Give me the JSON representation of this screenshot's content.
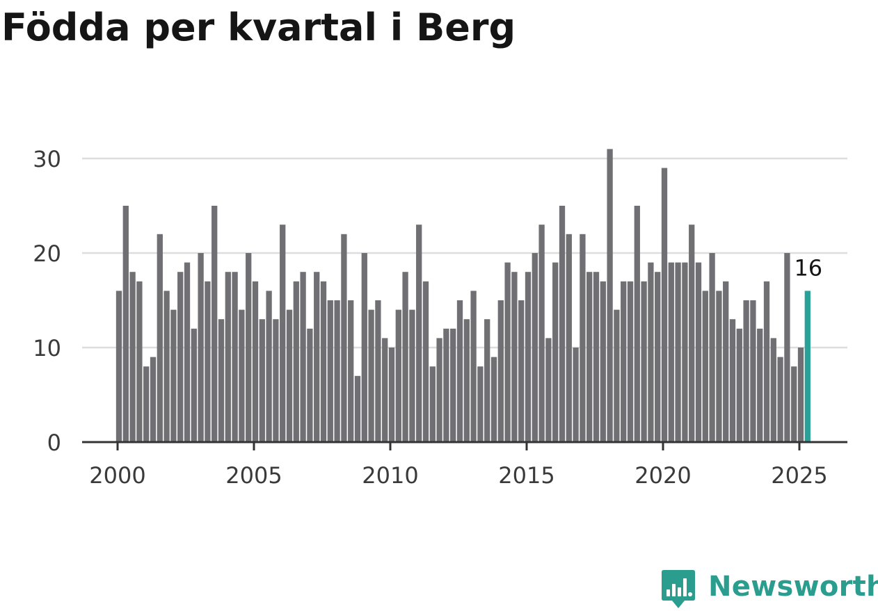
{
  "chart_data": {
    "type": "bar",
    "title": "Födda per kvartal i Berg",
    "xlabel": "",
    "ylabel": "",
    "x_start_year": 2000,
    "periods_per_year": 4,
    "ylim": [
      0,
      31
    ],
    "yticks": [
      0,
      10,
      20,
      30
    ],
    "xtick_labels": [
      "2000",
      "2005",
      "2010",
      "2015",
      "2020",
      "2025"
    ],
    "grid": true,
    "values": [
      16,
      25,
      18,
      17,
      8,
      9,
      22,
      16,
      14,
      18,
      19,
      12,
      20,
      17,
      25,
      13,
      18,
      18,
      14,
      20,
      17,
      13,
      16,
      13,
      23,
      14,
      17,
      18,
      12,
      18,
      17,
      15,
      15,
      22,
      15,
      7,
      20,
      14,
      15,
      11,
      10,
      14,
      18,
      14,
      23,
      17,
      8,
      11,
      12,
      12,
      15,
      13,
      16,
      8,
      13,
      9,
      15,
      19,
      18,
      15,
      18,
      20,
      23,
      11,
      19,
      25,
      22,
      10,
      22,
      18,
      18,
      17,
      31,
      14,
      17,
      17,
      25,
      17,
      19,
      18,
      29,
      19,
      19,
      19,
      23,
      19,
      16,
      20,
      16,
      17,
      13,
      12,
      15,
      15,
      12,
      17,
      11,
      9,
      20,
      8,
      10,
      16
    ],
    "highlight_last": true,
    "highlight_label": "16",
    "colors": {
      "bar": "#707074",
      "highlight": "#2aa198",
      "grid": "#dddddd",
      "axis": "#333333"
    }
  },
  "brand": {
    "name": "Newsworthy",
    "icon": "newsworthy-logo-icon",
    "color": "#2a9d8f"
  }
}
